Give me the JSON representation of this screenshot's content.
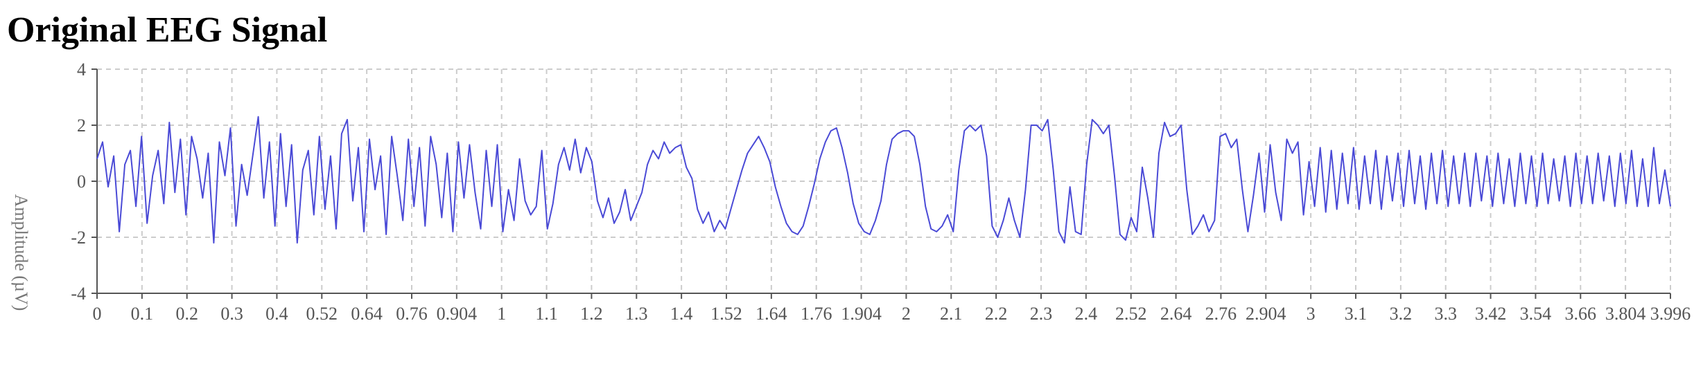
{
  "title": "Original EEG Signal",
  "chart_data": {
    "type": "line",
    "title": "Original EEG Signal",
    "xlabel": "",
    "ylabel": "Amplitude (µV)",
    "xlim": [
      0,
      3.996
    ],
    "ylim": [
      -4,
      4
    ],
    "grid": true,
    "x_tick_labels": [
      "0",
      "0.1",
      "0.2",
      "0.3",
      "0.4",
      "0.52",
      "0.64",
      "0.76",
      "0.904",
      "1",
      "1.1",
      "1.2",
      "1.3",
      "1.4",
      "1.52",
      "1.64",
      "1.76",
      "1.904",
      "2",
      "2.1",
      "2.2",
      "2.3",
      "2.4",
      "2.52",
      "2.64",
      "2.76",
      "2.904",
      "3",
      "3.1",
      "3.2",
      "3.3",
      "3.42",
      "3.54",
      "3.66",
      "3.804",
      "3.996"
    ],
    "y_tick_labels": [
      "-4",
      "-2",
      "0",
      "2",
      "4"
    ],
    "series": [
      {
        "color": "#4a4ad6",
        "sample_step": 0.02,
        "values": [
          0.8,
          1.4,
          -0.2,
          0.9,
          -1.8,
          0.6,
          1.1,
          -0.9,
          1.6,
          -1.5,
          0.2,
          1.1,
          -0.8,
          2.1,
          -0.4,
          1.5,
          -1.2,
          1.6,
          0.8,
          -0.6,
          1.0,
          -2.2,
          1.4,
          0.2,
          1.9,
          -1.6,
          0.6,
          -0.5,
          0.9,
          2.3,
          -0.6,
          1.4,
          -1.6,
          1.7,
          -0.9,
          1.3,
          -2.2,
          0.4,
          1.1,
          -1.2,
          1.6,
          -1.0,
          0.9,
          -1.7,
          1.7,
          2.2,
          -0.7,
          1.2,
          -1.8,
          1.5,
          -0.3,
          0.9,
          -1.9,
          1.6,
          0.2,
          -1.4,
          1.5,
          -0.9,
          1.2,
          -1.6,
          1.6,
          0.6,
          -1.3,
          1.0,
          -1.8,
          1.4,
          -0.6,
          1.3,
          -0.4,
          -1.7,
          1.1,
          -0.9,
          1.3,
          -1.8,
          -0.3,
          -1.4,
          0.8,
          -0.7,
          -1.2,
          -0.9,
          1.1,
          -1.7,
          -0.8,
          0.6,
          1.2,
          0.4,
          1.5,
          0.3,
          1.2,
          0.7,
          -0.7,
          -1.3,
          -0.6,
          -1.5,
          -1.1,
          -0.3,
          -1.4,
          -0.9,
          -0.4,
          0.6,
          1.1,
          0.8,
          1.4,
          1.0,
          1.2,
          1.3,
          0.5,
          0.1,
          -1.0,
          -1.5,
          -1.1,
          -1.8,
          -1.4,
          -1.7,
          -1.0,
          -0.3,
          0.4,
          1.0,
          1.3,
          1.6,
          1.2,
          0.7,
          -0.2,
          -0.9,
          -1.5,
          -1.8,
          -1.9,
          -1.6,
          -0.9,
          -0.1,
          0.8,
          1.4,
          1.8,
          1.9,
          1.2,
          0.3,
          -0.8,
          -1.5,
          -1.8,
          -1.9,
          -1.4,
          -0.7,
          0.6,
          1.5,
          1.7,
          1.8,
          1.8,
          1.6,
          0.6,
          -0.9,
          -1.7,
          -1.8,
          -1.6,
          -1.2,
          -1.8,
          0.4,
          1.8,
          2.0,
          1.8,
          2.0,
          0.9,
          -1.6,
          -2.0,
          -1.4,
          -0.6,
          -1.4,
          -2.0,
          -0.3,
          2.0,
          2.0,
          1.8,
          2.2,
          0.4,
          -1.8,
          -2.2,
          -0.2,
          -1.8,
          -1.9,
          0.6,
          2.2,
          2.0,
          1.7,
          2.0,
          0.2,
          -1.9,
          -2.1,
          -1.3,
          -1.8,
          0.5,
          -0.6,
          -2.0,
          1.0,
          2.1,
          1.6,
          1.7,
          2.0,
          -0.3,
          -1.9,
          -1.6,
          -1.2,
          -1.8,
          -1.4,
          1.6,
          1.7,
          1.2,
          1.5,
          -0.3,
          -1.8,
          -0.5,
          1.0,
          -1.1,
          1.3,
          -0.4,
          -1.4,
          1.5,
          1.0,
          1.4,
          -1.2,
          0.7,
          -0.9,
          1.2,
          -1.1,
          1.1,
          -1.0,
          1.0,
          -0.8,
          1.2,
          -1.0,
          0.9,
          -0.8,
          1.1,
          -1.0,
          0.9,
          -0.7,
          1.0,
          -0.9,
          1.1,
          -0.8,
          0.9,
          -1.0,
          1.0,
          -0.8,
          1.1,
          -0.9,
          0.9,
          -0.8,
          1.0,
          -0.9,
          1.0,
          -0.7,
          0.9,
          -0.9,
          1.0,
          -0.8,
          0.8,
          -0.9,
          1.0,
          -0.8,
          0.9,
          -0.9,
          1.0,
          -0.8,
          0.8,
          -0.7,
          0.9,
          -0.9,
          1.0,
          -0.8,
          0.9,
          -0.8,
          1.0,
          -0.7,
          0.9,
          -0.9,
          1.0,
          -0.8,
          1.1,
          -0.9,
          0.8,
          -0.9,
          1.2,
          -0.8,
          0.4,
          -0.9
        ]
      }
    ]
  }
}
